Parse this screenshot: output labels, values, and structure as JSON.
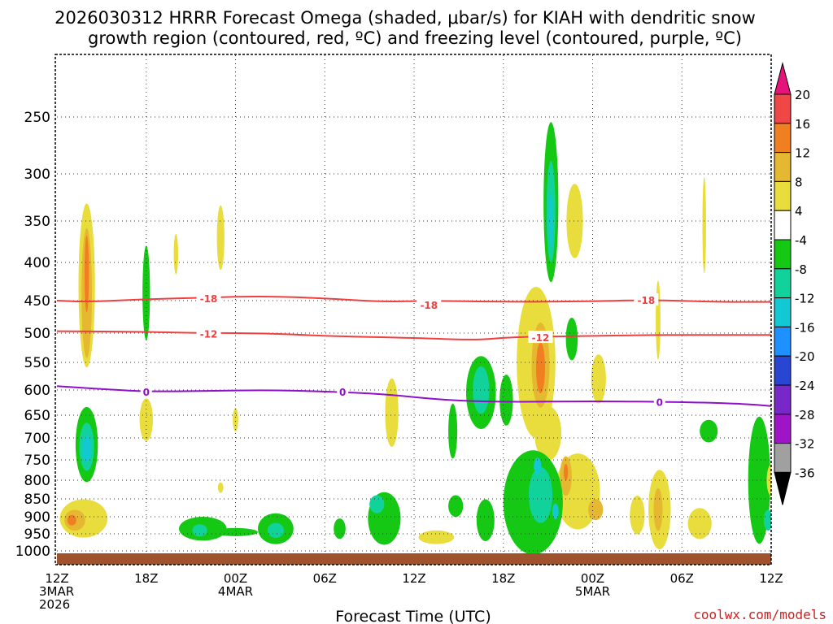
{
  "chart_data": {
    "type": "time-height cross section (filled contour + line contours)",
    "title_lines": [
      "2026030312 HRRR Forecast Omega (shaded, μbar/s) for KIAH with dendritic snow",
      "growth region (contoured, red, ºC) and freezing level (contoured, purple, ºC)"
    ],
    "xlabel": "Forecast Time (UTC)",
    "credit": "coolwx.com/models",
    "x_range_hours": [
      0,
      48
    ],
    "x_ticks": [
      {
        "hour": 0,
        "lines": [
          "12Z",
          "3MAR",
          "2026"
        ]
      },
      {
        "hour": 6,
        "lines": [
          "18Z"
        ]
      },
      {
        "hour": 12,
        "lines": [
          "00Z",
          "4MAR"
        ]
      },
      {
        "hour": 18,
        "lines": [
          "06Z"
        ]
      },
      {
        "hour": 24,
        "lines": [
          "12Z"
        ]
      },
      {
        "hour": 30,
        "lines": [
          "18Z"
        ]
      },
      {
        "hour": 36,
        "lines": [
          "00Z",
          "5MAR"
        ]
      },
      {
        "hour": 42,
        "lines": [
          "06Z"
        ]
      },
      {
        "hour": 48,
        "lines": [
          "12Z"
        ]
      }
    ],
    "y_axis": "pressure (hPa)",
    "y_ticks": [
      "250",
      "300",
      "350",
      "400",
      "450",
      "500",
      "550",
      "600",
      "650",
      "700",
      "750",
      "800",
      "850",
      "900",
      "950",
      "1000"
    ],
    "colorbar": {
      "levels": [
        "20",
        "16",
        "12",
        "8",
        "4",
        "-4",
        "-8",
        "-12",
        "-16",
        "-20",
        "-24",
        "-28",
        "-32",
        "-36"
      ],
      "colors": [
        "#ef4646",
        "#f07f22",
        "#e6b730",
        "#e8dd3c",
        "#ffffff",
        "#14c814",
        "#12d29b",
        "#12c8d2",
        "#1e90ff",
        "#2846d2",
        "#7828c8",
        "#a014c8",
        "#a0a0a0"
      ],
      "top_extend_color": "#e6147a",
      "bottom_extend_color": "#000000"
    },
    "contours": [
      {
        "name": "dgz-upper",
        "value": -18,
        "label": "-18",
        "color": "#ee4040",
        "points": [
          [
            0,
            450
          ],
          [
            2,
            452
          ],
          [
            6,
            448
          ],
          [
            10,
            446
          ],
          [
            14,
            444
          ],
          [
            18,
            447
          ],
          [
            22,
            452
          ],
          [
            25,
            450
          ],
          [
            30,
            452
          ],
          [
            36,
            451
          ],
          [
            40,
            449
          ],
          [
            44,
            452
          ],
          [
            48,
            452
          ]
        ],
        "labels": [
          {
            "hour": 10.2,
            "pressure": 447
          },
          {
            "hour": 25,
            "pressure": 456
          },
          {
            "hour": 39.6,
            "pressure": 449
          }
        ]
      },
      {
        "name": "dgz-lower",
        "value": -12,
        "label": "-12",
        "color": "#ee4040",
        "points": [
          [
            0,
            497
          ],
          [
            6,
            498
          ],
          [
            10,
            500
          ],
          [
            14,
            500
          ],
          [
            18,
            505
          ],
          [
            24,
            508
          ],
          [
            28,
            512
          ],
          [
            30,
            508
          ],
          [
            32,
            506
          ],
          [
            36,
            505
          ],
          [
            40,
            503
          ],
          [
            44,
            503
          ],
          [
            48,
            503
          ]
        ],
        "labels": [
          {
            "hour": 10.2,
            "pressure": 501
          },
          {
            "hour": 32.5,
            "pressure": 507
          }
        ]
      },
      {
        "name": "freezing-level",
        "value": 0,
        "label": "0",
        "color": "#9010c8",
        "points": [
          [
            0,
            593
          ],
          [
            4,
            600
          ],
          [
            6,
            603
          ],
          [
            10,
            602
          ],
          [
            14,
            600
          ],
          [
            18,
            603
          ],
          [
            22,
            608
          ],
          [
            26,
            620
          ],
          [
            30,
            624
          ],
          [
            36,
            622
          ],
          [
            42,
            624
          ],
          [
            46,
            627
          ],
          [
            48,
            632
          ]
        ],
        "labels": [
          {
            "hour": 6,
            "pressure": 603
          },
          {
            "hour": 19.2,
            "pressure": 603
          },
          {
            "hour": 40.5,
            "pressure": 623
          }
        ]
      }
    ],
    "omega_shading": [
      {
        "name": "blob-1",
        "color": "#e8dd3c",
        "hour": 2.0,
        "pressure": 430,
        "rx": 0.55,
        "ry": 110
      },
      {
        "name": "blob-2",
        "color": "#e6b730",
        "hour": 2.0,
        "pressure": 440,
        "rx": 0.35,
        "ry": 90
      },
      {
        "name": "blob-3",
        "color": "#f07f22",
        "hour": 2.0,
        "pressure": 415,
        "rx": 0.15,
        "ry": 50
      },
      {
        "name": "blob-4",
        "color": "#14c814",
        "hour": 6.0,
        "pressure": 440,
        "rx": 0.25,
        "ry": 65
      },
      {
        "name": "blob-5",
        "color": "#e8dd3c",
        "hour": 8.0,
        "pressure": 390,
        "rx": 0.15,
        "ry": 25
      },
      {
        "name": "blob-6",
        "color": "#e8dd3c",
        "hour": 11.0,
        "pressure": 370,
        "rx": 0.25,
        "ry": 38
      },
      {
        "name": "blob-7",
        "color": "#e8dd3c",
        "hour": 6.0,
        "pressure": 660,
        "rx": 0.45,
        "ry": 45
      },
      {
        "name": "blob-8",
        "color": "#e8dd3c",
        "hour": 12.0,
        "pressure": 660,
        "rx": 0.18,
        "ry": 25
      },
      {
        "name": "blob-9",
        "color": "#14c814",
        "hour": 2.0,
        "pressure": 715,
        "rx": 0.75,
        "ry": 85
      },
      {
        "name": "blob-10",
        "color": "#12d29b",
        "hour": 2.0,
        "pressure": 720,
        "rx": 0.5,
        "ry": 55
      },
      {
        "name": "blob-11",
        "color": "#12c8d2",
        "hour": 2.0,
        "pressure": 725,
        "rx": 0.3,
        "ry": 30
      },
      {
        "name": "blob-12",
        "color": "#e8dd3c",
        "hour": 1.8,
        "pressure": 905,
        "rx": 1.6,
        "ry": 55
      },
      {
        "name": "blob-13",
        "color": "#e6b730",
        "hour": 1.2,
        "pressure": 910,
        "rx": 0.7,
        "ry": 30
      },
      {
        "name": "blob-14",
        "color": "#f07f22",
        "hour": 1.0,
        "pressure": 910,
        "rx": 0.3,
        "ry": 15
      },
      {
        "name": "blob-15",
        "color": "#e8dd3c",
        "hour": 11.0,
        "pressure": 820,
        "rx": 0.18,
        "ry": 14
      },
      {
        "name": "blob-16",
        "color": "#14c814",
        "hour": 9.8,
        "pressure": 935,
        "rx": 1.6,
        "ry": 35
      },
      {
        "name": "blob-17",
        "color": "#14c814",
        "hour": 12.0,
        "pressure": 945,
        "rx": 1.5,
        "ry": 12
      },
      {
        "name": "blob-18",
        "color": "#12d29b",
        "hour": 9.6,
        "pressure": 940,
        "rx": 0.5,
        "ry": 18
      },
      {
        "name": "blob-19",
        "color": "#14c814",
        "hour": 14.7,
        "pressure": 935,
        "rx": 1.2,
        "ry": 45
      },
      {
        "name": "blob-20",
        "color": "#12d29b",
        "hour": 14.7,
        "pressure": 940,
        "rx": 0.55,
        "ry": 22
      },
      {
        "name": "blob-21",
        "color": "#14c814",
        "hour": 19.0,
        "pressure": 935,
        "rx": 0.4,
        "ry": 30
      },
      {
        "name": "blob-22",
        "color": "#e8dd3c",
        "hour": 22.5,
        "pressure": 645,
        "rx": 0.45,
        "ry": 70
      },
      {
        "name": "blob-23",
        "color": "#14c814",
        "hour": 22.0,
        "pressure": 905,
        "rx": 1.1,
        "ry": 75
      },
      {
        "name": "blob-24",
        "color": "#12d29b",
        "hour": 21.5,
        "pressure": 865,
        "rx": 0.5,
        "ry": 25
      },
      {
        "name": "blob-25",
        "color": "#e8dd3c",
        "hour": 25.5,
        "pressure": 960,
        "rx": 1.2,
        "ry": 20
      },
      {
        "name": "blob-26",
        "color": "#14c814",
        "hour": 26.8,
        "pressure": 870,
        "rx": 0.5,
        "ry": 30
      },
      {
        "name": "blob-27",
        "color": "#14c814",
        "hour": 26.6,
        "pressure": 685,
        "rx": 0.3,
        "ry": 60
      },
      {
        "name": "blob-28",
        "color": "#14c814",
        "hour": 28.5,
        "pressure": 605,
        "rx": 1.0,
        "ry": 70
      },
      {
        "name": "blob-29",
        "color": "#12d29b",
        "hour": 28.5,
        "pressure": 600,
        "rx": 0.55,
        "ry": 45
      },
      {
        "name": "blob-30",
        "color": "#14c814",
        "hour": 28.8,
        "pressure": 910,
        "rx": 0.6,
        "ry": 60
      },
      {
        "name": "blob-31",
        "color": "#14c814",
        "hour": 30.2,
        "pressure": 620,
        "rx": 0.45,
        "ry": 50
      },
      {
        "name": "blob-32",
        "color": "#e8dd3c",
        "hour": 32.2,
        "pressure": 550,
        "rx": 1.3,
        "ry": 130
      },
      {
        "name": "blob-33",
        "color": "#e6b730",
        "hour": 32.5,
        "pressure": 555,
        "rx": 0.6,
        "ry": 75
      },
      {
        "name": "blob-34",
        "color": "#f07f22",
        "hour": 32.5,
        "pressure": 560,
        "rx": 0.3,
        "ry": 45
      },
      {
        "name": "blob-35",
        "color": "#e8dd3c",
        "hour": 33.0,
        "pressure": 690,
        "rx": 0.9,
        "ry": 60
      },
      {
        "name": "blob-36",
        "color": "#e8dd3c",
        "hour": 35.0,
        "pressure": 830,
        "rx": 1.5,
        "ry": 100
      },
      {
        "name": "blob-37",
        "color": "#e6b730",
        "hour": 34.2,
        "pressure": 790,
        "rx": 0.4,
        "ry": 50
      },
      {
        "name": "blob-38",
        "color": "#f07f22",
        "hour": 34.2,
        "pressure": 780,
        "rx": 0.15,
        "ry": 20
      },
      {
        "name": "blob-39",
        "color": "#e6b730",
        "hour": 36.2,
        "pressure": 880,
        "rx": 0.5,
        "ry": 30
      },
      {
        "name": "blob-40",
        "color": "#14c814",
        "hour": 32.0,
        "pressure": 860,
        "rx": 2.0,
        "ry": 140
      },
      {
        "name": "blob-41",
        "color": "#12d29b",
        "hour": 32.5,
        "pressure": 840,
        "rx": 0.8,
        "ry": 75
      },
      {
        "name": "blob-42",
        "color": "#12c8d2",
        "hour": 32.3,
        "pressure": 765,
        "rx": 0.25,
        "ry": 20
      },
      {
        "name": "blob-43",
        "color": "#12c8d2",
        "hour": 33.5,
        "pressure": 885,
        "rx": 0.22,
        "ry": 22
      },
      {
        "name": "blob-44",
        "color": "#14c814",
        "hour": 33.2,
        "pressure": 330,
        "rx": 0.5,
        "ry": 85
      },
      {
        "name": "blob-45",
        "color": "#12d29b",
        "hour": 33.2,
        "pressure": 340,
        "rx": 0.3,
        "ry": 55
      },
      {
        "name": "blob-46",
        "color": "#12c8d2",
        "hour": 33.2,
        "pressure": 350,
        "rx": 0.15,
        "ry": 30
      },
      {
        "name": "blob-47",
        "color": "#e8dd3c",
        "hour": 34.8,
        "pressure": 350,
        "rx": 0.55,
        "ry": 42
      },
      {
        "name": "blob-48",
        "color": "#14c814",
        "hour": 34.6,
        "pressure": 510,
        "rx": 0.4,
        "ry": 35
      },
      {
        "name": "blob-49",
        "color": "#e8dd3c",
        "hour": 36.4,
        "pressure": 580,
        "rx": 0.5,
        "ry": 45
      },
      {
        "name": "blob-50",
        "color": "#e8dd3c",
        "hour": 39.0,
        "pressure": 895,
        "rx": 0.5,
        "ry": 55
      },
      {
        "name": "blob-51",
        "color": "#e8dd3c",
        "hour": 40.5,
        "pressure": 880,
        "rx": 0.75,
        "ry": 110
      },
      {
        "name": "blob-52",
        "color": "#e6b730",
        "hour": 40.4,
        "pressure": 880,
        "rx": 0.3,
        "ry": 60
      },
      {
        "name": "blob-53",
        "color": "#e8dd3c",
        "hour": 40.4,
        "pressure": 480,
        "rx": 0.16,
        "ry": 60
      },
      {
        "name": "blob-54",
        "color": "#e8dd3c",
        "hour": 43.2,
        "pressure": 920,
        "rx": 0.8,
        "ry": 45
      },
      {
        "name": "blob-55",
        "color": "#e8dd3c",
        "hour": 43.5,
        "pressure": 355,
        "rx": 0.12,
        "ry": 55
      },
      {
        "name": "blob-56",
        "color": "#14c814",
        "hour": 43.8,
        "pressure": 685,
        "rx": 0.6,
        "ry": 25
      },
      {
        "name": "blob-57",
        "color": "#14c814",
        "hour": 47.2,
        "pressure": 800,
        "rx": 0.75,
        "ry": 160
      },
      {
        "name": "blob-58",
        "color": "#12d29b",
        "hour": 47.8,
        "pressure": 910,
        "rx": 0.3,
        "ry": 30
      },
      {
        "name": "blob-59",
        "color": "#e8dd3c",
        "hour": 48.0,
        "pressure": 800,
        "rx": 0.3,
        "ry": 40
      }
    ],
    "surface_bar_color": "#a0522d"
  }
}
